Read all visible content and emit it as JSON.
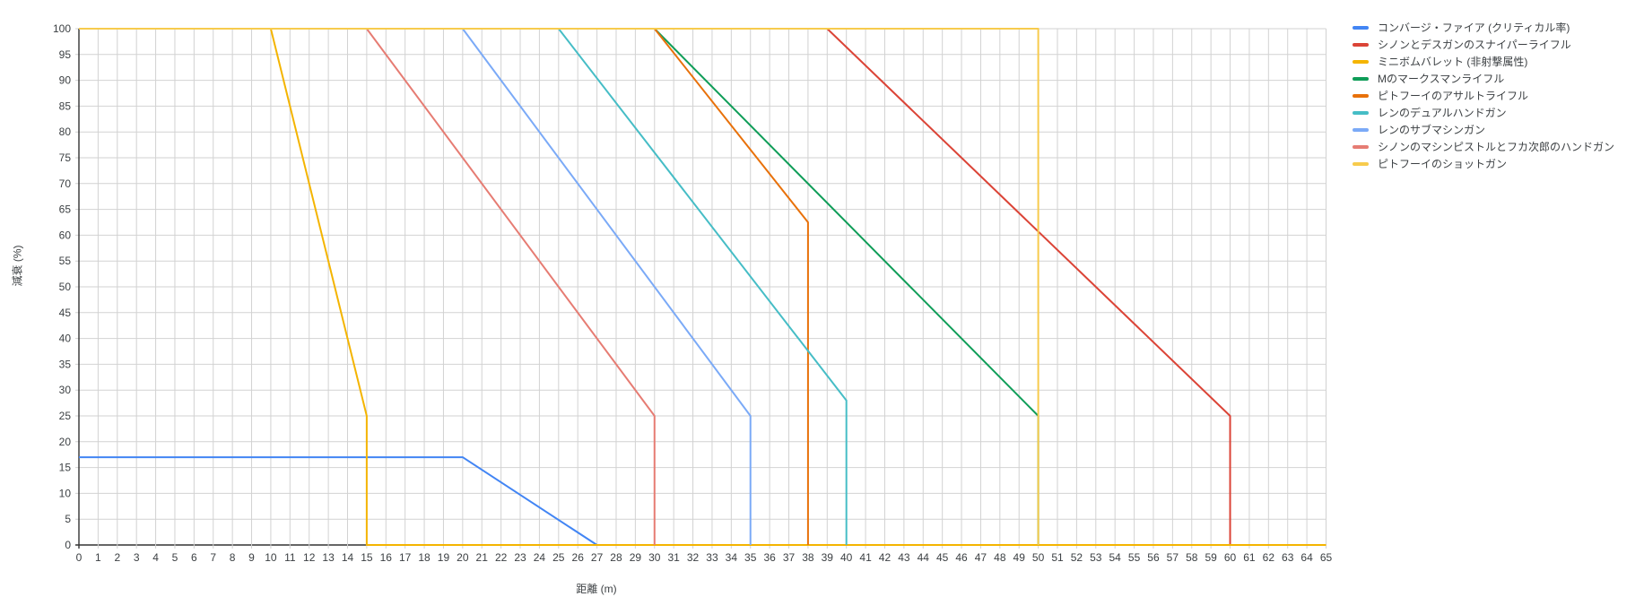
{
  "chart_data": {
    "type": "line",
    "title": "",
    "xlabel": "距離 (m)",
    "ylabel": "減衰 (%)",
    "xlim": [
      0,
      65
    ],
    "ylim": [
      0,
      100
    ],
    "x_tick_step": 1,
    "y_tick_step": 5,
    "grid": true,
    "legend_position": "right",
    "layout": {
      "grid_color": "#d2d2d2",
      "axis_color": "#333333",
      "tick_label_color": "#3c4043",
      "background": "#ffffff"
    },
    "series": [
      {
        "name": "コンバージ・ファイア (クリティカル率)",
        "color": "#4285f4",
        "points": [
          [
            0,
            17
          ],
          [
            20,
            17
          ],
          [
            27,
            0
          ]
        ]
      },
      {
        "name": "シノンとデスガンのスナイパーライフル",
        "color": "#db4437",
        "points": [
          [
            0,
            100
          ],
          [
            39,
            100
          ],
          [
            60,
            25
          ],
          [
            60,
            0
          ]
        ]
      },
      {
        "name": "ミニボムバレット (非射撃属性)",
        "color": "#f4b400",
        "points": [
          [
            0,
            100
          ],
          [
            10,
            100
          ],
          [
            15,
            25
          ],
          [
            15,
            0
          ],
          [
            65,
            0
          ]
        ]
      },
      {
        "name": "Mのマークスマンライフル",
        "color": "#0f9d58",
        "points": [
          [
            0,
            100
          ],
          [
            30,
            100
          ],
          [
            50,
            25
          ],
          [
            50,
            0
          ]
        ]
      },
      {
        "name": "ピトフーイのアサルトライフル",
        "color": "#e8710a",
        "points": [
          [
            0,
            100
          ],
          [
            30,
            100
          ],
          [
            38,
            62.5
          ],
          [
            38,
            0
          ]
        ]
      },
      {
        "name": "レンのデュアルハンドガン",
        "color": "#46bdc6",
        "points": [
          [
            0,
            100
          ],
          [
            25,
            100
          ],
          [
            40,
            28
          ],
          [
            40,
            0
          ]
        ]
      },
      {
        "name": "レンのサブマシンガン",
        "color": "#7baaf7",
        "points": [
          [
            0,
            100
          ],
          [
            20,
            100
          ],
          [
            35,
            25
          ],
          [
            35,
            0
          ]
        ]
      },
      {
        "name": "シノンのマシンピストルとフカ次郎のハンドガン",
        "color": "#e67c73",
        "points": [
          [
            0,
            100
          ],
          [
            15,
            100
          ],
          [
            30,
            25
          ],
          [
            30,
            0
          ]
        ]
      },
      {
        "name": "ピトフーイのショットガン",
        "color": "#f7cb4d",
        "points": [
          [
            0,
            100
          ],
          [
            50,
            100
          ],
          [
            50,
            0
          ]
        ]
      }
    ]
  }
}
